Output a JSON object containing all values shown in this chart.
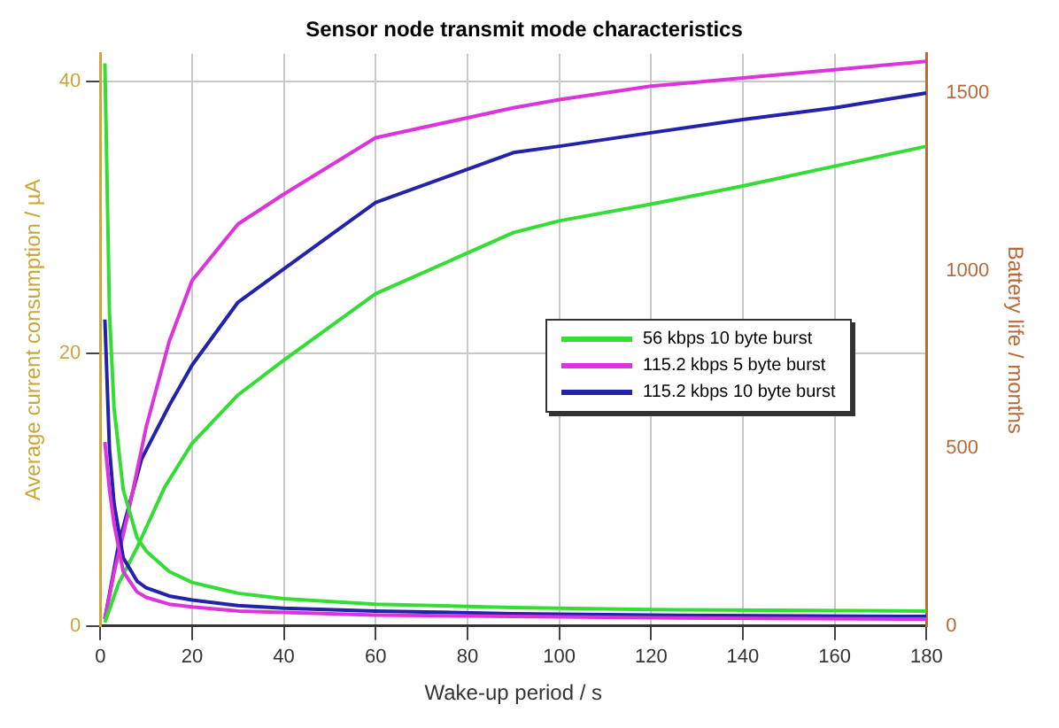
{
  "chart_data": {
    "type": "line",
    "title": "Sensor node transmit mode characteristics",
    "xlabel": "Wake-up period / s",
    "ylabel": "Average current consumption / µA",
    "y2label": "Battery life / months",
    "xlim": [
      0,
      180
    ],
    "xticks": [
      0,
      20,
      40,
      60,
      80,
      100,
      120,
      140,
      160,
      180
    ],
    "ylim": [
      0,
      42
    ],
    "yticks": [
      0,
      20,
      40
    ],
    "y2lim": [
      0,
      1610
    ],
    "y2ticks": [
      0,
      500,
      1000,
      1500
    ],
    "grid": true,
    "legend": "right",
    "marker": "none",
    "line_style": "solid",
    "series": [
      {
        "name": "56 kbps 10 byte burst",
        "color": "#33dd33",
        "x": [
          1,
          2,
          3,
          5,
          8,
          10,
          15,
          20,
          30,
          40,
          60,
          90,
          120,
          180
        ],
        "values": [
          41.3,
          23,
          16,
          10,
          6.5,
          5.5,
          4,
          3.2,
          2.4,
          2.0,
          1.6,
          1.35,
          1.2,
          1.1
        ]
      },
      {
        "name": "115.2 kbps 5 byte burst",
        "color": "#dd33dd",
        "x": [
          1,
          2,
          3,
          5,
          8,
          10,
          15,
          20,
          30,
          40,
          60,
          90,
          120,
          180
        ],
        "values": [
          13.5,
          10,
          7.5,
          4,
          2.5,
          2.1,
          1.6,
          1.4,
          1.1,
          1.0,
          0.8,
          0.7,
          0.6,
          0.5
        ]
      },
      {
        "name": "115.2 kbps 10 byte burst",
        "color": "#2222aa",
        "x": [
          1,
          2,
          3,
          5,
          8,
          10,
          15,
          20,
          30,
          40,
          60,
          90,
          120,
          180
        ],
        "values": [
          22.5,
          13,
          9,
          5,
          3.3,
          2.8,
          2.2,
          1.9,
          1.5,
          1.3,
          1.1,
          0.9,
          0.8,
          0.7
        ]
      },
      {
        "color": "#33dd33",
        "axis": "y2",
        "x": [
          1,
          4,
          8,
          14,
          20,
          30,
          40,
          60,
          90,
          100,
          120,
          140,
          160,
          180
        ],
        "values": [
          10,
          120,
          220,
          390,
          514,
          650,
          748,
          935,
          1107,
          1140,
          1187,
          1238,
          1294,
          1350
        ]
      },
      {
        "color": "#dd33dd",
        "axis": "y2",
        "x": [
          1,
          3,
          6,
          10,
          15,
          20,
          30,
          40,
          60,
          90,
          100,
          120,
          140,
          160,
          180
        ],
        "values": [
          20,
          150,
          313,
          560,
          800,
          972,
          1131,
          1215,
          1374,
          1458,
          1481,
          1519,
          1542,
          1565,
          1589
        ]
      },
      {
        "color": "#2222aa",
        "axis": "y2",
        "x": [
          1,
          4,
          9,
          15,
          20,
          30,
          40,
          60,
          90,
          100,
          120,
          140,
          160,
          180
        ],
        "values": [
          20,
          230,
          470,
          620,
          734,
          911,
          1005,
          1192,
          1332,
          1350,
          1388,
          1425,
          1458,
          1500
        ]
      }
    ]
  }
}
